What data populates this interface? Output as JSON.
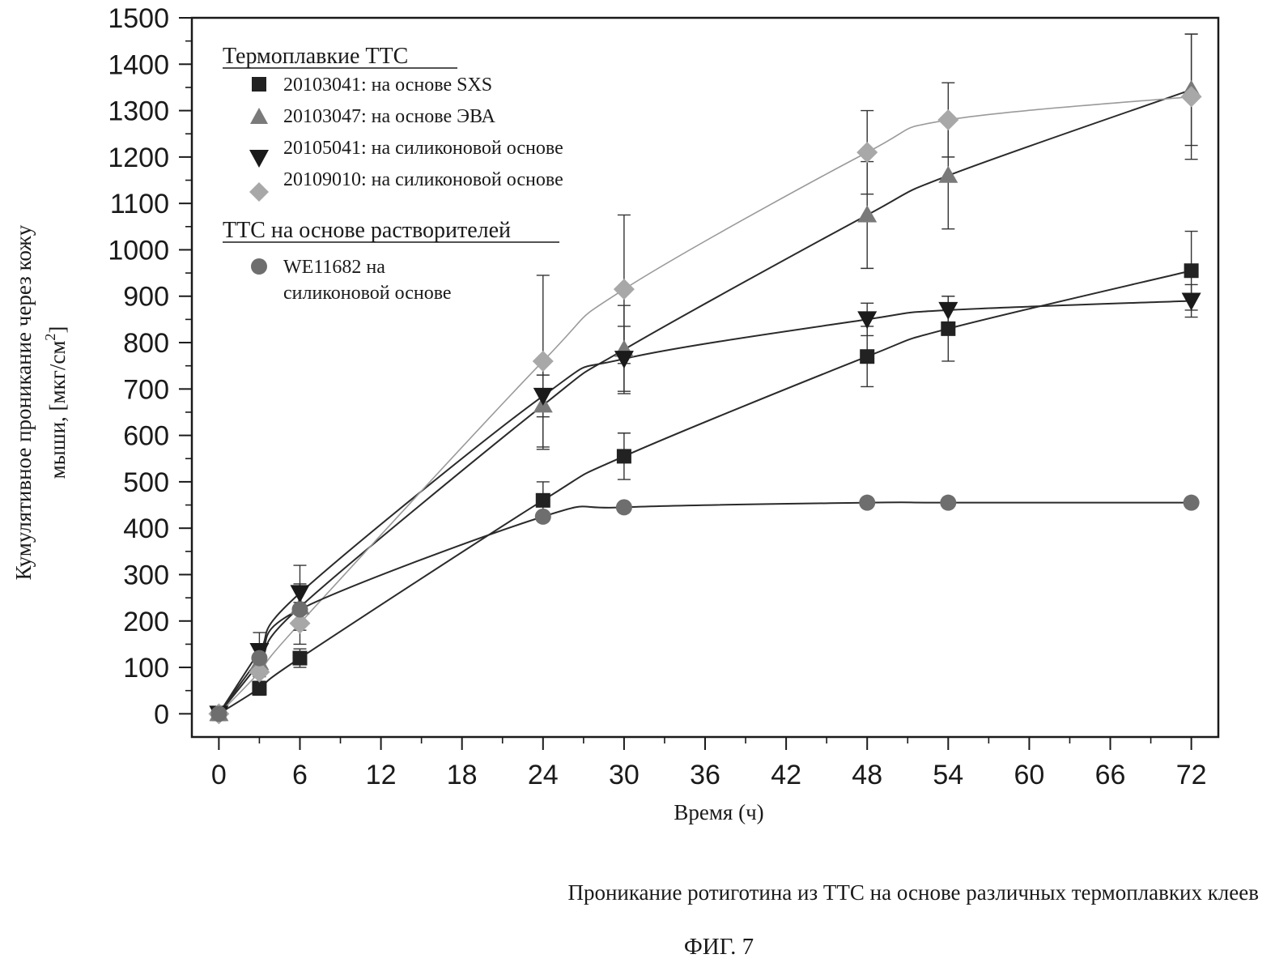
{
  "chart_data": {
    "type": "line",
    "title": "",
    "xlabel": "Время (ч)",
    "ylabel_line1": "Кумулятивное проникание через кожу",
    "ylabel_line2": "мыши, [мкг/см",
    "ylabel_sup": "2",
    "ylabel_end": "]",
    "xlim": [
      -2,
      74
    ],
    "ylim": [
      -50,
      1500
    ],
    "xticks": [
      0,
      6,
      12,
      18,
      24,
      30,
      36,
      42,
      48,
      54,
      60,
      66,
      72
    ],
    "yticks": [
      0,
      100,
      200,
      300,
      400,
      500,
      600,
      700,
      800,
      900,
      1000,
      1100,
      1200,
      1300,
      1400,
      1500
    ],
    "grid": false,
    "legend": {
      "placement": "top-left",
      "group1_title": "Термоплавкие ТТС",
      "group2_title": "ТТС на основе растворителей",
      "entries": [
        {
          "text": "20103041: на основе SXS"
        },
        {
          "text": "20103047: на основе ЭВА"
        },
        {
          "text": "20105041: на силиконовой основе"
        },
        {
          "text": "20109010: на силиконовой основе"
        },
        {
          "text_line1": "WE11682 на",
          "text_line2": "силиконовой основе"
        }
      ]
    },
    "series": [
      {
        "name": "20103041: на основе SXS",
        "marker": "square",
        "color": "#222222",
        "x": [
          0,
          3,
          6,
          24,
          30,
          48,
          54,
          72
        ],
        "y": [
          0,
          55,
          120,
          460,
          555,
          770,
          830,
          955
        ],
        "err": [
          0,
          15,
          20,
          40,
          50,
          65,
          70,
          85
        ]
      },
      {
        "name": "20103047: на основе ЭВА",
        "marker": "triangle-up",
        "color": "#7a7a7a",
        "x": [
          0,
          3,
          6,
          24,
          30,
          48,
          54,
          72
        ],
        "y": [
          0,
          110,
          230,
          665,
          785,
          1075,
          1160,
          1345
        ],
        "err": [
          0,
          30,
          50,
          95,
          95,
          115,
          115,
          120
        ]
      },
      {
        "name": "20105041: на силиконовой основе",
        "marker": "triangle-down",
        "color": "#1a1a1a",
        "x": [
          0,
          3,
          6,
          24,
          30,
          48,
          54,
          72
        ],
        "y": [
          0,
          135,
          260,
          685,
          765,
          850,
          870,
          890
        ],
        "err": [
          0,
          40,
          60,
          45,
          70,
          35,
          30,
          35
        ]
      },
      {
        "name": "20109010: на силиконовой основе",
        "marker": "diamond",
        "color": "#a8a8a8",
        "x": [
          0,
          3,
          6,
          24,
          30,
          48,
          54,
          72
        ],
        "y": [
          0,
          90,
          195,
          760,
          915,
          1210,
          1280,
          1330
        ],
        "err": [
          0,
          25,
          45,
          185,
          160,
          90,
          80,
          135
        ]
      },
      {
        "name": "WE11682 на силиконовой основе",
        "marker": "circle",
        "color": "#6e6e6e",
        "x": [
          0,
          3,
          6,
          24,
          30,
          48,
          54,
          72
        ],
        "y": [
          0,
          120,
          225,
          425,
          445,
          455,
          455,
          455
        ],
        "err": [
          0,
          0,
          0,
          0,
          0,
          0,
          0,
          0
        ]
      }
    ]
  },
  "caption": "Проникание ротиготина из ТТС на основе различных термоплавких клеев",
  "figure_label": "ФИГ. 7"
}
